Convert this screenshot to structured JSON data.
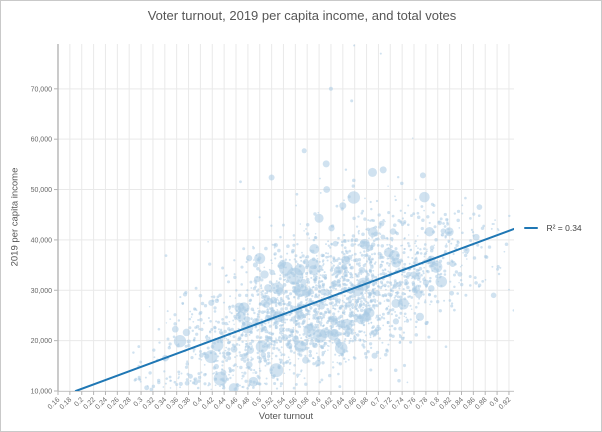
{
  "frame": {
    "background": "#ffffff",
    "border_color": "#c9c9c9"
  },
  "chart_data": {
    "type": "scatter",
    "title": "Voter turnout, 2019 per capita income, and total votes",
    "xlabel": "Voter turnout",
    "ylabel": "2019 per capita income",
    "size_encoding": "total votes",
    "grid": true,
    "xlim": [
      0.16,
      0.9285
    ],
    "ylim": [
      10000,
      78900
    ],
    "x_ticks": [
      "0.16",
      "0.18",
      "0.2",
      "0.22",
      "0.24",
      "0.26",
      "0.28",
      "0.3",
      "0.32",
      "0.34",
      "0.36",
      "0.38",
      "0.4",
      "0.42",
      "0.44",
      "0.46",
      "0.48",
      "0.5",
      "0.52",
      "0.54",
      "0.56",
      "0.58",
      "0.6",
      "0.62",
      "0.64",
      "0.66",
      "0.68",
      "0.7",
      "0.72",
      "0.74",
      "0.76",
      "0.78",
      "0.8",
      "0.82",
      "0.84",
      "0.86",
      "0.88",
      "0.9",
      "0.92"
    ],
    "y_ticks": [
      10000,
      20000,
      30000,
      40000,
      50000,
      60000,
      70000
    ],
    "y_tick_labels": [
      "10,000",
      "20,000",
      "30,000",
      "40,000",
      "50,000",
      "60,000",
      "70,000"
    ],
    "legend": {
      "label": "R² = 0.34",
      "position": "right-middle"
    },
    "trendline": {
      "x": [
        0.19,
        0.929
      ],
      "y": [
        10000,
        42200
      ],
      "r_squared": 0.34
    },
    "colors": {
      "point_fill": "#a9cbe4",
      "point_opacity": 0.55,
      "trend": "#1f77b4",
      "grid": "#e9e9e9",
      "axis_line": "#a8a8a8",
      "x_axis_line": "#cccccc",
      "tick": "#b5b5b5",
      "tick_label": "#666666"
    },
    "highlight_points": [
      [
        0.62,
        70000,
        2
      ],
      [
        0.659,
        78600,
        1
      ],
      [
        0.704,
        77000,
        1
      ],
      [
        0.655,
        67600,
        1.5
      ],
      [
        0.575,
        57700,
        2.5
      ],
      [
        0.612,
        55100,
        3.5
      ],
      [
        0.69,
        53400,
        4.5
      ],
      [
        0.708,
        53900,
        3.5
      ],
      [
        0.775,
        52800,
        3
      ],
      [
        0.52,
        52400,
        3
      ],
      [
        0.559,
        32800,
        8.5
      ],
      [
        0.592,
        38200,
        5
      ],
      [
        0.5,
        36300,
        5.5
      ],
      [
        0.53,
        30400,
        6
      ],
      [
        0.468,
        24800,
        5
      ],
      [
        0.6,
        44300,
        4.5
      ],
      [
        0.64,
        46800,
        3.5
      ],
      [
        0.73,
        35500,
        5
      ],
      [
        0.665,
        30000,
        6
      ],
      [
        0.685,
        25500,
        5
      ],
      [
        0.61,
        21500,
        5
      ],
      [
        0.645,
        36000,
        4.5
      ],
      [
        0.928,
        26000,
        1.2
      ]
    ],
    "procedural_cloud": {
      "seed": 7,
      "count": 2400,
      "x_mean": 0.61,
      "x_sd": 0.125,
      "x_min": 0.28,
      "x_max": 0.925,
      "y_noise_sd": 6300,
      "y_noise_shift": -1000,
      "outlier_prob": 0.08,
      "outlier_scale": 16000,
      "y_min": 10250,
      "y_max": 76000,
      "radius_mix": {
        "small": [
          0.7,
          1.8,
          0.92
        ],
        "medium": [
          1.8,
          3.5,
          0.98
        ],
        "large": [
          3.5,
          7,
          1.0
        ]
      }
    }
  }
}
